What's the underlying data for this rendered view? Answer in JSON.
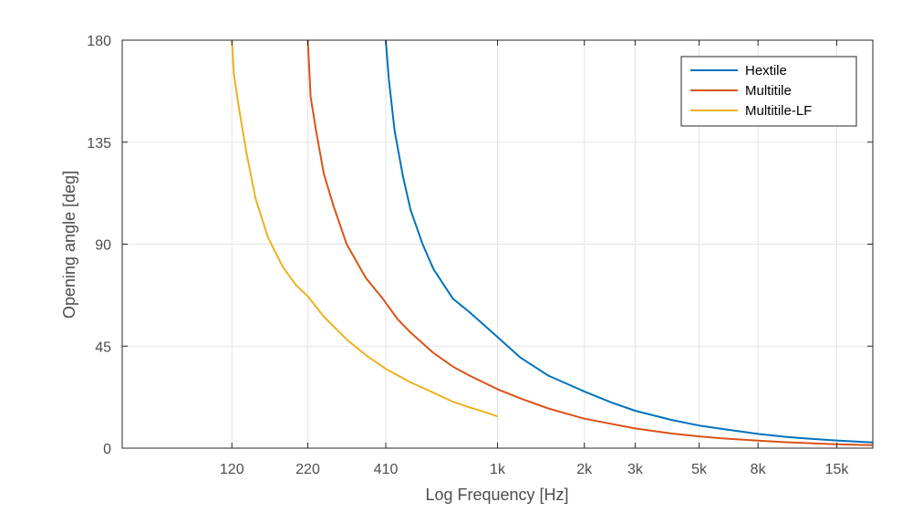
{
  "chart_data": {
    "type": "line",
    "xlabel": "Log Frequency [Hz]",
    "ylabel": "Opening angle [deg]",
    "x_scale": "log",
    "xlim": [
      50,
      20000
    ],
    "ylim": [
      0,
      180
    ],
    "x_ticks": [
      120,
      220,
      410,
      1000,
      2000,
      3000,
      5000,
      8000,
      15000
    ],
    "x_tick_labels": [
      "120",
      "220",
      "410",
      "1k",
      "2k",
      "3k",
      "5k",
      "8k",
      "15k"
    ],
    "y_ticks": [
      0,
      45,
      90,
      135,
      180
    ],
    "y_tick_labels": [
      "0",
      "45",
      "90",
      "135",
      "180"
    ],
    "grid": true,
    "legend_position": "top-right",
    "series": [
      {
        "name": "Hextile",
        "color": "#0072BD",
        "x": [
          410,
          420,
          440,
          470,
          500,
          550,
          600,
          700,
          800,
          1000,
          1200,
          1500,
          2000,
          2500,
          3000,
          4000,
          5000,
          6000,
          8000,
          10000,
          12000,
          15000,
          20000
        ],
        "y": [
          180,
          163,
          140,
          120,
          105,
          90,
          79,
          66,
          60,
          49,
          40,
          32,
          25,
          20,
          16.5,
          12.5,
          10,
          8.5,
          6.3,
          5,
          4.2,
          3.4,
          2.5
        ]
      },
      {
        "name": "Multitile",
        "color": "#D95319",
        "x": [
          220,
          225,
          235,
          250,
          270,
          300,
          350,
          400,
          450,
          500,
          600,
          700,
          800,
          1000,
          1200,
          1500,
          2000,
          3000,
          4000,
          5000,
          6000,
          8000,
          10000,
          15000,
          20000
        ],
        "y": [
          180,
          155,
          140,
          121,
          107,
          90,
          75,
          66,
          57,
          51,
          42,
          36,
          32,
          26,
          22,
          17.5,
          13,
          8.7,
          6.5,
          5.2,
          4.3,
          3.3,
          2.6,
          1.7,
          1.3
        ]
      },
      {
        "name": "Multitile-LF",
        "color": "#EDB120",
        "x": [
          120,
          122,
          127,
          135,
          145,
          160,
          180,
          200,
          220,
          250,
          300,
          350,
          410,
          500,
          600,
          700,
          800,
          900,
          1000
        ],
        "y": [
          180,
          165,
          150,
          130,
          110,
          93,
          80,
          72,
          67,
          58,
          48,
          41,
          35,
          29,
          24.5,
          20.5,
          18,
          16,
          14
        ]
      }
    ]
  }
}
